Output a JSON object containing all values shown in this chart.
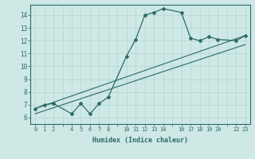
{
  "xlabel": "Humidex (Indice chaleur)",
  "ylabel": "",
  "bg_color": "#cde8e5",
  "line_color": "#2d6b68",
  "grid_color": "#b8d8d5",
  "xlim": [
    -0.5,
    23.5
  ],
  "ylim": [
    5.5,
    14.8
  ],
  "xticks_all": [
    0,
    1,
    2,
    3,
    4,
    5,
    6,
    7,
    8,
    9,
    10,
    11,
    12,
    13,
    14,
    15,
    16,
    17,
    18,
    19,
    20,
    21,
    22,
    23
  ],
  "xtick_labels": {
    "0": "0",
    "1": "1",
    "2": "2",
    "3": "",
    "4": "4",
    "5": "5",
    "6": "6",
    "7": "7",
    "8": "8",
    "9": "",
    "10": "10",
    "11": "11",
    "12": "12",
    "13": "13",
    "14": "14",
    "15": "",
    "16": "16",
    "17": "17",
    "18": "18",
    "19": "19",
    "20": "20",
    "21": "",
    "22": "22",
    "23": "23"
  },
  "yticks": [
    6,
    7,
    8,
    9,
    10,
    11,
    12,
    13,
    14
  ],
  "curve1_x": [
    0,
    1,
    2,
    4,
    5,
    6,
    7,
    8,
    10,
    11,
    12,
    13,
    14,
    16,
    17,
    18,
    19,
    20,
    22,
    23
  ],
  "curve1_y": [
    6.7,
    7.0,
    7.1,
    6.3,
    7.1,
    6.3,
    7.1,
    7.6,
    10.8,
    12.1,
    14.0,
    14.2,
    14.5,
    14.2,
    12.2,
    12.0,
    12.3,
    12.1,
    12.0,
    12.4
  ],
  "line2_x": [
    0,
    23
  ],
  "line2_y": [
    6.7,
    12.4
  ],
  "line3_x": [
    0,
    23
  ],
  "line3_y": [
    6.3,
    11.7
  ]
}
